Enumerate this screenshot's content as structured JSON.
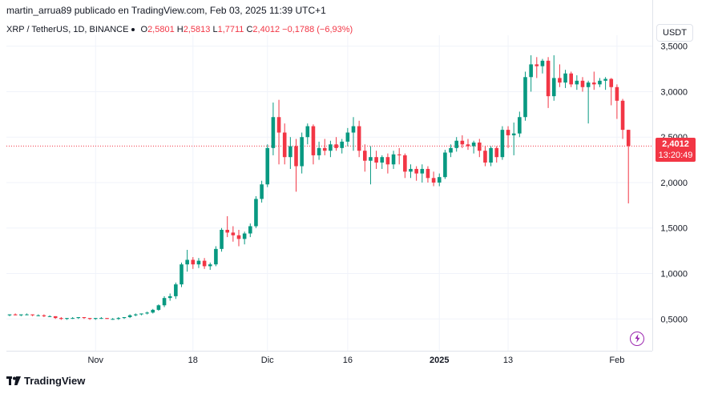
{
  "header": {
    "publisher_line": "martin_arrua89 publicado en TradingView.com, Feb 03, 2025 11:39 UTC+1"
  },
  "legend": {
    "symbol": "XRP / TetherUS, 1D, BINANCE",
    "o_label": "O",
    "o_value": "2,5801",
    "h_label": "H",
    "h_value": "2,5813",
    "l_label": "L",
    "l_value": "1,7711",
    "c_label": "C",
    "c_value": "2,4012",
    "change": "−0,1788 (−6,93%)"
  },
  "currency_button": "USDT",
  "price_tag": {
    "price": "2,4012",
    "countdown": "13:20:49"
  },
  "brand": "TradingView",
  "icons": {
    "flash": "flash-icon",
    "logo": "tradingview-logo-icon"
  },
  "colors": {
    "up": "#089981",
    "down": "#f23645",
    "grid": "#f0f3fa",
    "price_line": "#f23645"
  },
  "chart_data": {
    "type": "candlestick",
    "y_ticks": [
      0.5,
      1.0,
      1.5,
      2.0,
      2.5,
      3.0,
      3.5
    ],
    "y_tick_labels": [
      "0,5000",
      "1,0000",
      "1,5000",
      "2,0000",
      "2,5000",
      "3,0000",
      "3,5000"
    ],
    "x_labels": [
      {
        "label": "Nov",
        "index": 15,
        "bold": false
      },
      {
        "label": "18",
        "index": 32,
        "bold": false
      },
      {
        "label": "Dic",
        "index": 45,
        "bold": false
      },
      {
        "label": "16",
        "index": 59,
        "bold": false
      },
      {
        "label": "2025",
        "index": 75,
        "bold": true
      },
      {
        "label": "13",
        "index": 87,
        "bold": false
      },
      {
        "label": "Feb",
        "index": 106,
        "bold": false
      }
    ],
    "ylim": [
      0.15,
      3.55
    ],
    "last_price": 2.4012,
    "candles": [
      [
        0.54,
        0.55,
        0.53,
        0.55
      ],
      [
        0.55,
        0.56,
        0.54,
        0.54
      ],
      [
        0.54,
        0.55,
        0.53,
        0.55
      ],
      [
        0.55,
        0.56,
        0.54,
        0.55
      ],
      [
        0.55,
        0.55,
        0.53,
        0.54
      ],
      [
        0.54,
        0.55,
        0.53,
        0.54
      ],
      [
        0.54,
        0.55,
        0.52,
        0.53
      ],
      [
        0.53,
        0.54,
        0.52,
        0.53
      ],
      [
        0.53,
        0.53,
        0.5,
        0.51
      ],
      [
        0.51,
        0.52,
        0.49,
        0.5
      ],
      [
        0.5,
        0.51,
        0.49,
        0.51
      ],
      [
        0.51,
        0.52,
        0.5,
        0.51
      ],
      [
        0.51,
        0.52,
        0.5,
        0.52
      ],
      [
        0.52,
        0.52,
        0.5,
        0.51
      ],
      [
        0.51,
        0.51,
        0.49,
        0.5
      ],
      [
        0.5,
        0.51,
        0.49,
        0.51
      ],
      [
        0.51,
        0.52,
        0.5,
        0.51
      ],
      [
        0.51,
        0.51,
        0.5,
        0.5
      ],
      [
        0.5,
        0.51,
        0.49,
        0.5
      ],
      [
        0.5,
        0.52,
        0.49,
        0.51
      ],
      [
        0.51,
        0.52,
        0.5,
        0.52
      ],
      [
        0.52,
        0.55,
        0.51,
        0.54
      ],
      [
        0.54,
        0.56,
        0.53,
        0.55
      ],
      [
        0.55,
        0.56,
        0.54,
        0.56
      ],
      [
        0.56,
        0.58,
        0.55,
        0.57
      ],
      [
        0.57,
        0.61,
        0.56,
        0.6
      ],
      [
        0.6,
        0.66,
        0.59,
        0.65
      ],
      [
        0.65,
        0.75,
        0.63,
        0.73
      ],
      [
        0.73,
        0.78,
        0.7,
        0.75
      ],
      [
        0.75,
        0.9,
        0.72,
        0.88
      ],
      [
        0.88,
        1.12,
        0.85,
        1.1
      ],
      [
        1.1,
        1.26,
        1.02,
        1.15
      ],
      [
        1.15,
        1.18,
        1.05,
        1.1
      ],
      [
        1.1,
        1.17,
        1.06,
        1.14
      ],
      [
        1.14,
        1.17,
        1.05,
        1.08
      ],
      [
        1.08,
        1.12,
        1.04,
        1.1
      ],
      [
        1.1,
        1.3,
        1.08,
        1.27
      ],
      [
        1.27,
        1.5,
        1.24,
        1.48
      ],
      [
        1.48,
        1.63,
        1.4,
        1.45
      ],
      [
        1.45,
        1.52,
        1.35,
        1.42
      ],
      [
        1.42,
        1.48,
        1.3,
        1.38
      ],
      [
        1.38,
        1.46,
        1.32,
        1.44
      ],
      [
        1.44,
        1.55,
        1.4,
        1.52
      ],
      [
        1.52,
        1.85,
        1.5,
        1.82
      ],
      [
        1.82,
        2.02,
        1.78,
        1.98
      ],
      [
        1.98,
        2.42,
        1.95,
        2.38
      ],
      [
        2.38,
        2.88,
        2.3,
        2.72
      ],
      [
        2.72,
        2.91,
        2.2,
        2.55
      ],
      [
        2.55,
        2.65,
        2.2,
        2.28
      ],
      [
        2.28,
        2.5,
        2.15,
        2.4
      ],
      [
        2.4,
        2.48,
        1.9,
        2.18
      ],
      [
        2.18,
        2.55,
        2.1,
        2.5
      ],
      [
        2.5,
        2.65,
        2.42,
        2.62
      ],
      [
        2.62,
        2.64,
        2.2,
        2.3
      ],
      [
        2.3,
        2.45,
        2.25,
        2.38
      ],
      [
        2.38,
        2.48,
        2.3,
        2.35
      ],
      [
        2.35,
        2.46,
        2.28,
        2.42
      ],
      [
        2.42,
        2.5,
        2.35,
        2.38
      ],
      [
        2.38,
        2.48,
        2.32,
        2.45
      ],
      [
        2.45,
        2.6,
        2.4,
        2.55
      ],
      [
        2.55,
        2.72,
        2.35,
        2.62
      ],
      [
        2.62,
        2.68,
        2.28,
        2.35
      ],
      [
        2.35,
        2.42,
        2.12,
        2.24
      ],
      [
        2.24,
        2.4,
        1.98,
        2.28
      ],
      [
        2.28,
        2.35,
        2.15,
        2.22
      ],
      [
        2.22,
        2.3,
        2.15,
        2.28
      ],
      [
        2.28,
        2.32,
        2.1,
        2.2
      ],
      [
        2.2,
        2.35,
        2.15,
        2.31
      ],
      [
        2.31,
        2.38,
        2.2,
        2.3
      ],
      [
        2.3,
        2.32,
        2.05,
        2.12
      ],
      [
        2.12,
        2.2,
        2.05,
        2.15
      ],
      [
        2.15,
        2.18,
        2.02,
        2.1
      ],
      [
        2.1,
        2.2,
        2.0,
        2.15
      ],
      [
        2.15,
        2.18,
        2.0,
        2.05
      ],
      [
        2.05,
        2.12,
        1.96,
        2.0
      ],
      [
        2.0,
        2.1,
        1.96,
        2.06
      ],
      [
        2.06,
        2.36,
        2.04,
        2.33
      ],
      [
        2.33,
        2.42,
        2.28,
        2.38
      ],
      [
        2.38,
        2.5,
        2.34,
        2.46
      ],
      [
        2.46,
        2.52,
        2.38,
        2.42
      ],
      [
        2.42,
        2.48,
        2.36,
        2.4
      ],
      [
        2.4,
        2.46,
        2.32,
        2.44
      ],
      [
        2.44,
        2.48,
        2.28,
        2.35
      ],
      [
        2.35,
        2.4,
        2.18,
        2.22
      ],
      [
        2.22,
        2.4,
        2.18,
        2.38
      ],
      [
        2.38,
        2.4,
        2.22,
        2.28
      ],
      [
        2.28,
        2.62,
        2.25,
        2.58
      ],
      [
        2.58,
        2.62,
        2.38,
        2.52
      ],
      [
        2.52,
        2.66,
        2.3,
        2.54
      ],
      [
        2.54,
        2.78,
        2.5,
        2.72
      ],
      [
        2.72,
        3.22,
        2.68,
        3.16
      ],
      [
        3.16,
        3.4,
        3.0,
        3.3
      ],
      [
        3.3,
        3.38,
        3.15,
        3.28
      ],
      [
        3.28,
        3.36,
        3.2,
        3.34
      ],
      [
        3.34,
        3.38,
        2.82,
        2.95
      ],
      [
        2.95,
        3.4,
        2.9,
        3.15
      ],
      [
        3.15,
        3.3,
        3.05,
        3.1
      ],
      [
        3.1,
        3.24,
        3.04,
        3.2
      ],
      [
        3.2,
        3.22,
        3.05,
        3.08
      ],
      [
        3.08,
        3.18,
        3.02,
        3.12
      ],
      [
        3.12,
        3.16,
        3.0,
        3.05
      ],
      [
        3.05,
        3.12,
        2.65,
        3.1
      ],
      [
        3.1,
        3.22,
        3.02,
        3.08
      ],
      [
        3.08,
        3.15,
        3.05,
        3.12
      ],
      [
        3.12,
        3.16,
        3.02,
        3.14
      ],
      [
        3.14,
        3.15,
        2.85,
        3.05
      ],
      [
        3.05,
        3.08,
        2.7,
        2.9
      ],
      [
        2.9,
        2.92,
        2.48,
        2.58
      ],
      [
        2.5801,
        2.5813,
        1.7711,
        2.4012
      ]
    ]
  }
}
